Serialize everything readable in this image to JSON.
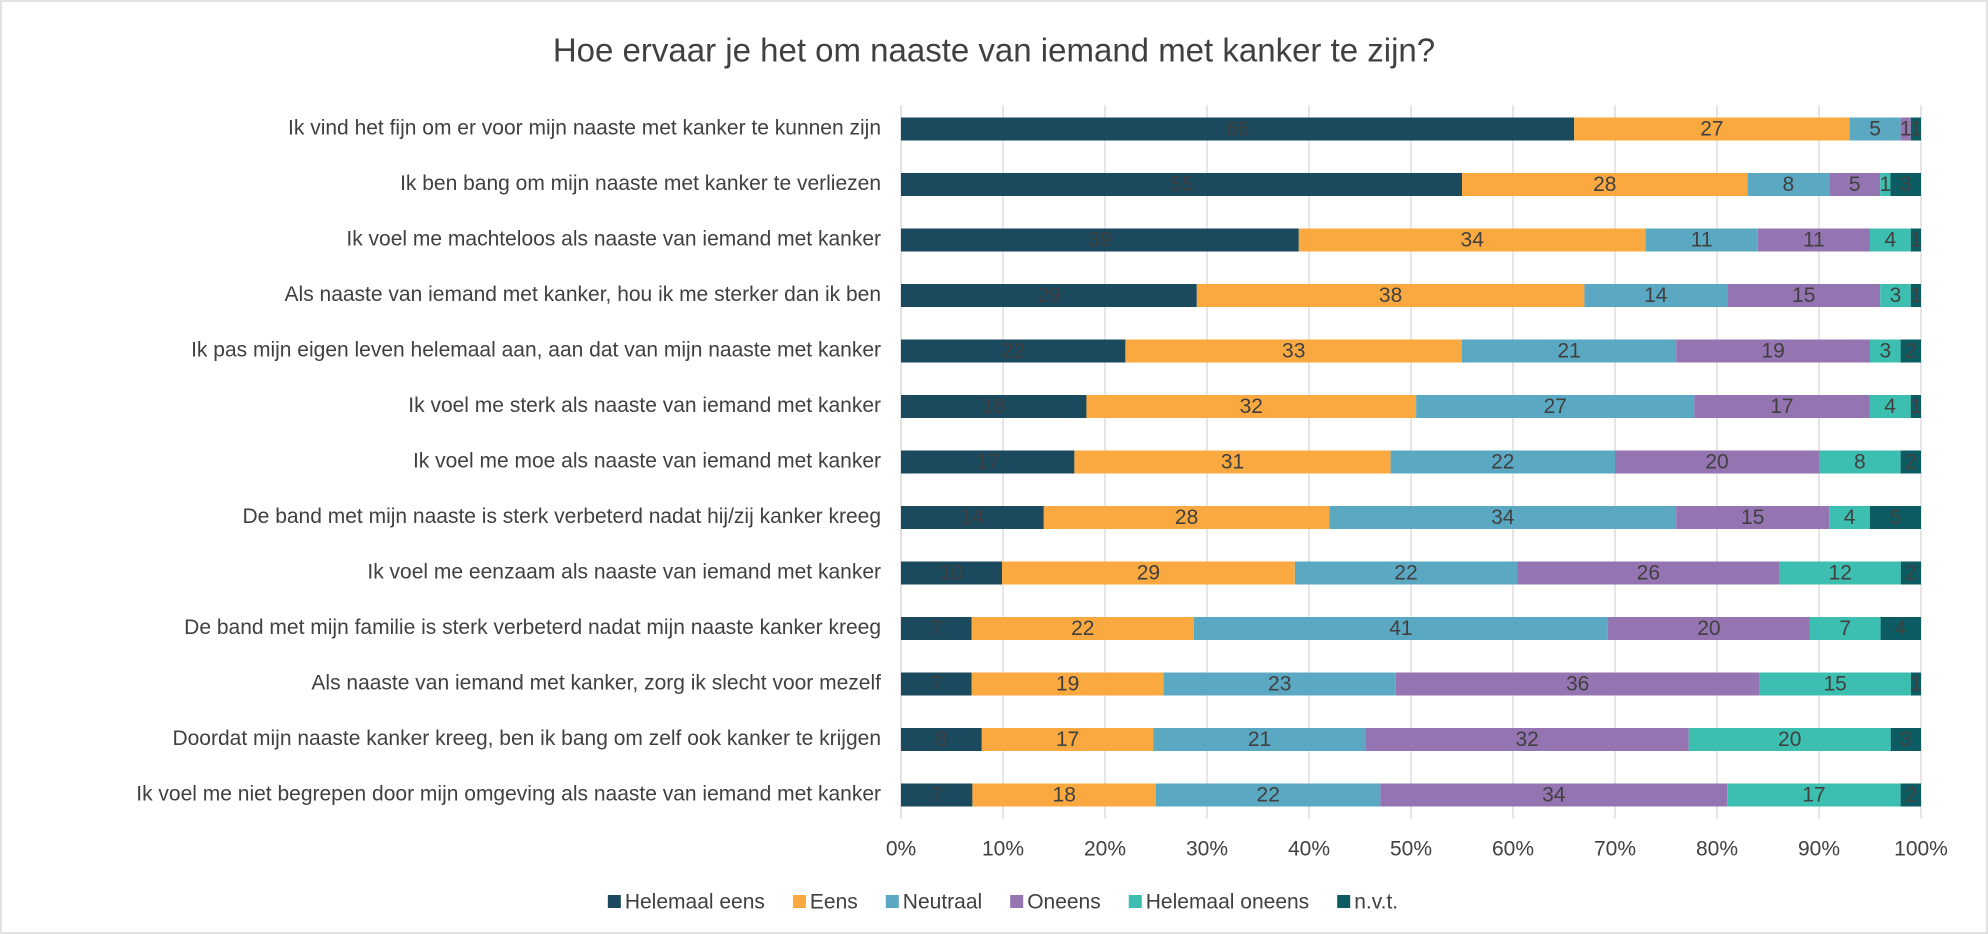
{
  "chart_data": {
    "type": "stacked-bar-100",
    "title": "Hoe ervaar je het om naaste van iemand met kanker te zijn?",
    "categories": [
      "Ik vind het fijn om er voor mijn naaste met kanker te kunnen zijn",
      "Ik ben bang om mijn naaste met kanker te verliezen",
      "Ik voel me machteloos als naaste van iemand met kanker",
      "Als naaste van iemand met kanker, hou ik me sterker dan ik ben",
      "Ik pas mijn eigen leven helemaal aan, aan dat van mijn naaste met kanker",
      "Ik voel me sterk als naaste van iemand met kanker",
      "Ik voel me moe als naaste van iemand met kanker",
      "De band met mijn naaste is sterk verbeterd nadat hij/zij kanker kreeg",
      "Ik voel me eenzaam als naaste van iemand met kanker",
      "De band met mijn familie is sterk verbeterd nadat mijn naaste kanker kreeg",
      "Als naaste van iemand met kanker, zorg ik slecht voor mezelf",
      "Doordat mijn naaste kanker kreeg, ben ik bang om zelf ook kanker te krijgen",
      "Ik voel me niet begrepen door mijn omgeving als naaste van iemand met kanker"
    ],
    "series": [
      {
        "name": "Helemaal eens",
        "color": "#1b4a5e",
        "label_color": "#ffffff",
        "values": [
          66,
          55,
          39,
          29,
          22,
          18,
          17,
          14,
          10,
          7,
          7,
          8,
          7
        ]
      },
      {
        "name": "Eens",
        "color": "#f9a93f",
        "label_color": "#404040",
        "values": [
          27,
          28,
          34,
          38,
          33,
          32,
          31,
          28,
          29,
          22,
          19,
          17,
          18
        ]
      },
      {
        "name": "Neutraal",
        "color": "#5ba8c3",
        "label_color": "#404040",
        "values": [
          5,
          8,
          11,
          14,
          21,
          27,
          22,
          34,
          22,
          41,
          23,
          21,
          22
        ]
      },
      {
        "name": "Oneens",
        "color": "#9474b1",
        "label_color": "#404040",
        "values": [
          1,
          5,
          11,
          15,
          19,
          17,
          20,
          15,
          26,
          20,
          36,
          32,
          34
        ]
      },
      {
        "name": "Helemaal oneens",
        "color": "#3cbfb1",
        "label_color": "#404040",
        "values": [
          null,
          1,
          4,
          3,
          3,
          4,
          8,
          4,
          12,
          7,
          15,
          20,
          17
        ]
      },
      {
        "name": "n.v.t.",
        "color": "#0e5c63",
        "label_color": "#ffffff",
        "values": [
          1,
          3,
          1,
          1,
          2,
          1,
          2,
          5,
          2,
          4,
          1,
          3,
          2
        ]
      }
    ],
    "xlim": [
      0,
      100
    ],
    "xticks": [
      {
        "value": 0,
        "label": "0%"
      },
      {
        "value": 10,
        "label": "10%"
      },
      {
        "value": 20,
        "label": "20%"
      },
      {
        "value": 30,
        "label": "30%"
      },
      {
        "value": 40,
        "label": "40%"
      },
      {
        "value": 50,
        "label": "50%"
      },
      {
        "value": 60,
        "label": "60%"
      },
      {
        "value": 70,
        "label": "70%"
      },
      {
        "value": 80,
        "label": "80%"
      },
      {
        "value": 90,
        "label": "90%"
      },
      {
        "value": 100,
        "label": "100%"
      }
    ],
    "grid": true,
    "legend": "bottom"
  }
}
